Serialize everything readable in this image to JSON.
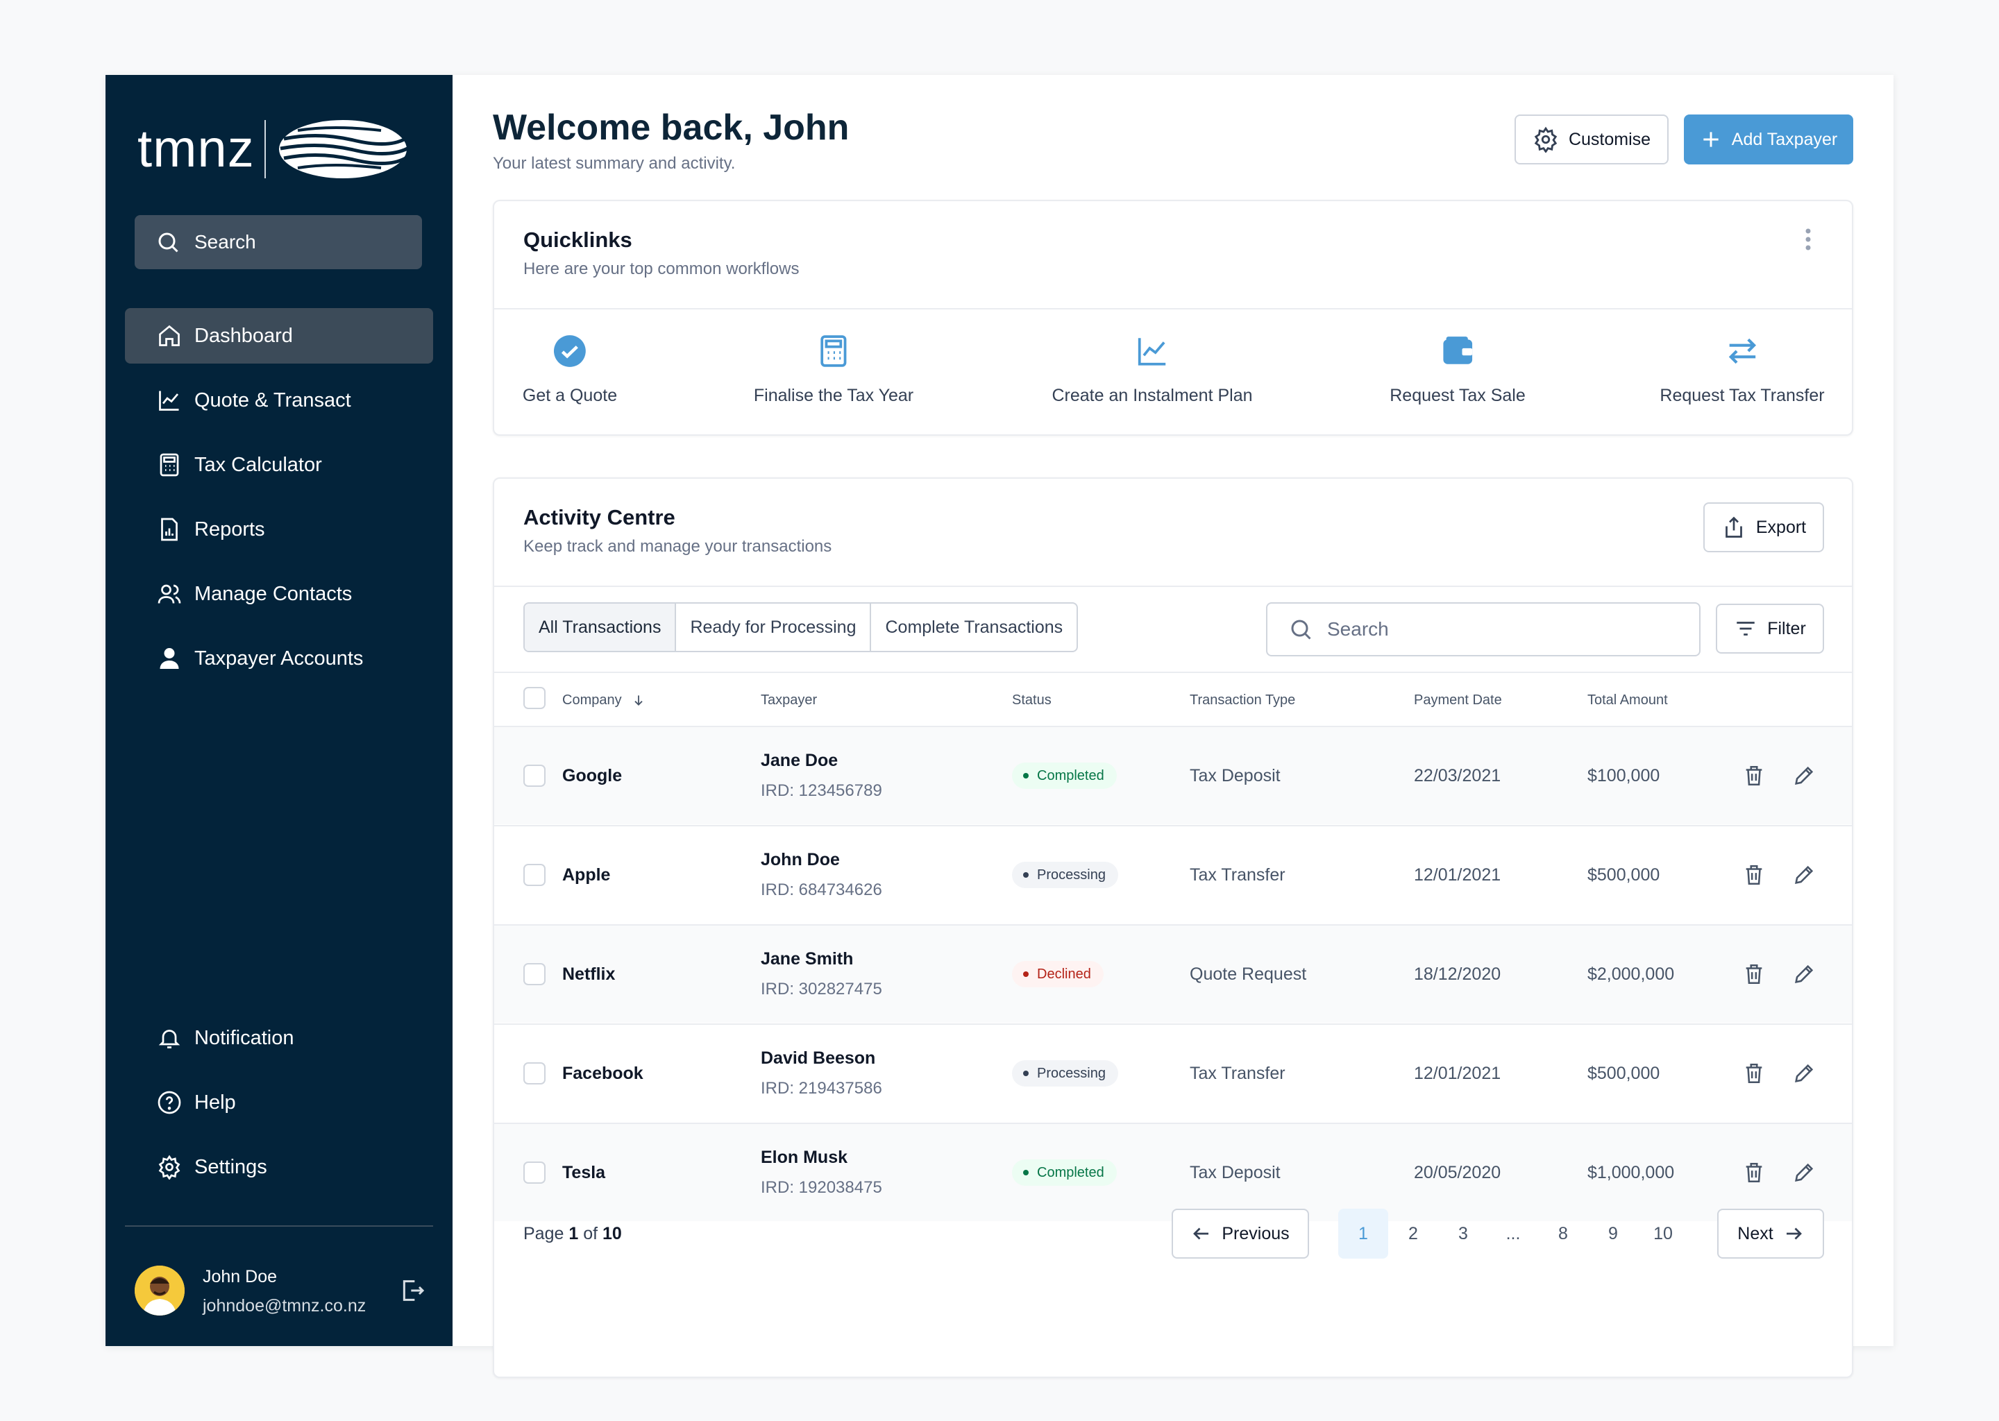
{
  "brand": {
    "logo_text": "tmnz"
  },
  "sidebar": {
    "search_label": "Search",
    "nav": [
      {
        "label": "Dashboard",
        "icon": "home-icon",
        "active": true
      },
      {
        "label": "Quote & Transact",
        "icon": "chart-line-icon"
      },
      {
        "label": "Tax Calculator",
        "icon": "calculator-icon"
      },
      {
        "label": "Reports",
        "icon": "report-icon"
      },
      {
        "label": "Manage Contacts",
        "icon": "contacts-icon"
      },
      {
        "label": "Taxpayer Accounts",
        "icon": "user-icon"
      }
    ],
    "bottom_nav": [
      {
        "label": "Notification",
        "icon": "bell-icon"
      },
      {
        "label": "Help",
        "icon": "help-icon"
      },
      {
        "label": "Settings",
        "icon": "gear-icon"
      }
    ],
    "user": {
      "name": "John Doe",
      "email": "johndoe@tmnz.co.nz"
    }
  },
  "header": {
    "title": "Welcome back, John",
    "subtitle": "Your latest summary and activity.",
    "customise_label": "Customise",
    "add_taxpayer_label": "Add Taxpayer"
  },
  "quicklinks": {
    "title": "Quicklinks",
    "subtitle": "Here are your top common workflows",
    "items": [
      {
        "label": "Get a Quote",
        "icon": "check-circle-icon"
      },
      {
        "label": "Finalise the Tax Year",
        "icon": "calculator-icon"
      },
      {
        "label": "Create an Instalment Plan",
        "icon": "chart-line-icon"
      },
      {
        "label": "Request Tax Sale",
        "icon": "wallet-icon"
      },
      {
        "label": "Request Tax Transfer",
        "icon": "transfer-icon"
      }
    ]
  },
  "activity": {
    "title": "Activity Centre",
    "subtitle": "Keep track and manage your transactions",
    "export_label": "Export",
    "tabs": [
      "All Transactions",
      "Ready for Processing",
      "Complete Transactions"
    ],
    "search_placeholder": "Search",
    "filter_label": "Filter",
    "columns": [
      "Company",
      "Taxpayer",
      "Status",
      "Transaction Type",
      "Payment Date",
      "Total Amount"
    ],
    "rows": [
      {
        "company": "Google",
        "taxpayer": "Jane Doe",
        "ird": "IRD: 123456789",
        "status": "Completed",
        "type": "Tax Deposit",
        "date": "22/03/2021",
        "amount": "$100,000"
      },
      {
        "company": "Apple",
        "taxpayer": "John Doe",
        "ird": "IRD: 684734626",
        "status": "Processing",
        "type": "Tax Transfer",
        "date": "12/01/2021",
        "amount": "$500,000"
      },
      {
        "company": "Netflix",
        "taxpayer": "Jane Smith",
        "ird": "IRD: 302827475",
        "status": "Declined",
        "type": "Quote Request",
        "date": "18/12/2020",
        "amount": "$2,000,000"
      },
      {
        "company": "Facebook",
        "taxpayer": "David Beeson",
        "ird": "IRD: 219437586",
        "status": "Processing",
        "type": "Tax Transfer",
        "date": "12/01/2021",
        "amount": "$500,000"
      },
      {
        "company": "Tesla",
        "taxpayer": "Elon Musk",
        "ird": "IRD: 192038475",
        "status": "Completed",
        "type": "Tax Deposit",
        "date": "20/05/2020",
        "amount": "$1,000,000"
      }
    ],
    "pagination": {
      "page_word": "Page",
      "current": "1",
      "of_word": "of",
      "total": "10",
      "previous_label": "Previous",
      "next_label": "Next",
      "pages": [
        "1",
        "2",
        "3",
        "...",
        "8",
        "9",
        "10"
      ]
    }
  },
  "colors": {
    "sidebar_bg": "#03233a",
    "accent": "#4a9ad6",
    "completed_text": "#067647",
    "completed_bg": "#ecfdf3",
    "processing_text": "#344054",
    "processing_bg": "#f2f4f7",
    "declined_text": "#b42318",
    "declined_bg": "#fef3f2"
  }
}
